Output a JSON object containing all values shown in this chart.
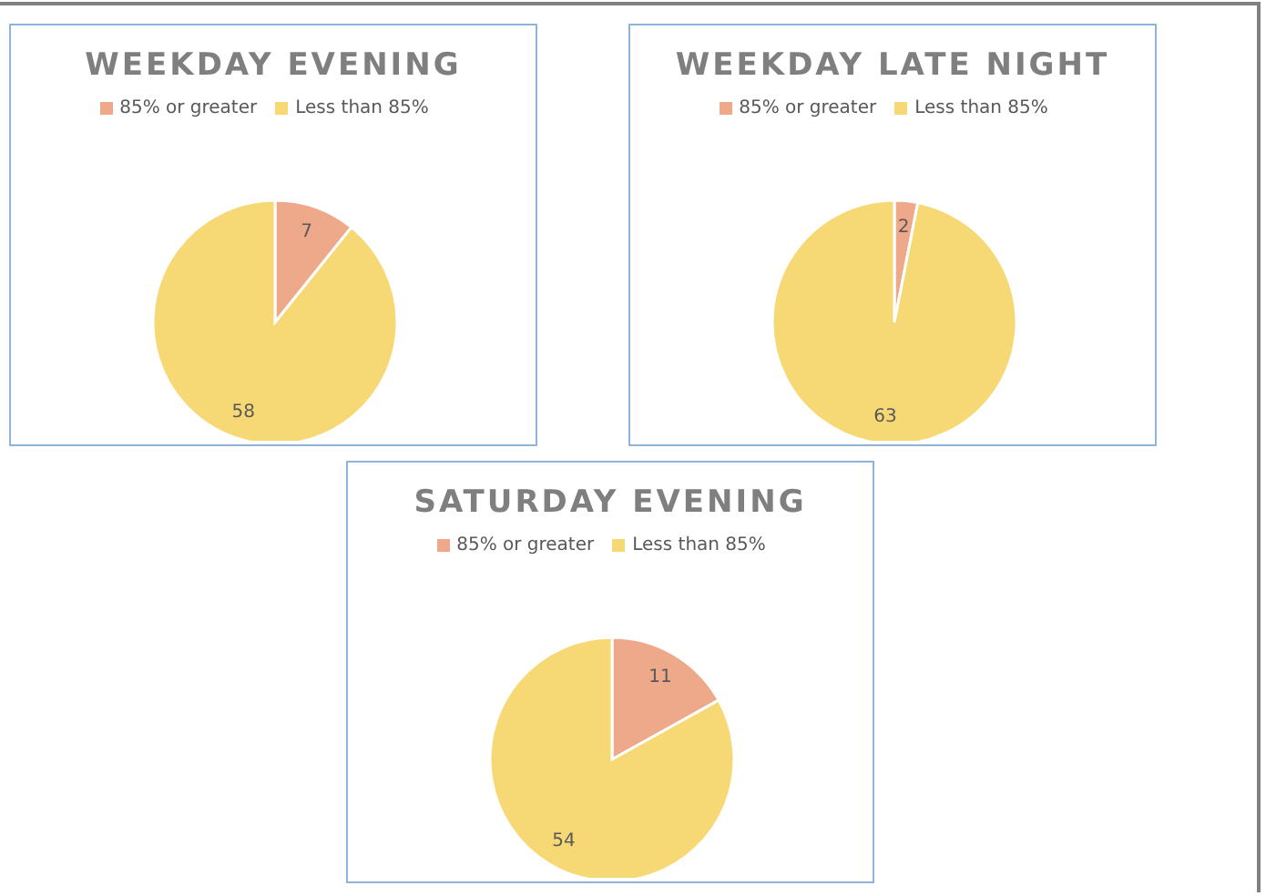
{
  "chart_data": [
    {
      "type": "pie",
      "title": "WEEKDAY EVENING",
      "categories": [
        "85% or greater",
        "Less than 85%"
      ],
      "values": [
        7,
        58
      ],
      "colors": [
        "#eda989",
        "#f6d874"
      ],
      "data_labels": true,
      "legend": "top"
    },
    {
      "type": "pie",
      "title": "WEEKDAY LATE NIGHT",
      "categories": [
        "85% or greater",
        "Less than 85%"
      ],
      "values": [
        2,
        63
      ],
      "colors": [
        "#eda989",
        "#f6d874"
      ],
      "data_labels": true,
      "legend": "top"
    },
    {
      "type": "pie",
      "title": "SATURDAY EVENING",
      "categories": [
        "85% or greater",
        "Less than 85%"
      ],
      "values": [
        11,
        54
      ],
      "colors": [
        "#eda989",
        "#f6d874"
      ],
      "data_labels": true,
      "legend": "top"
    }
  ]
}
